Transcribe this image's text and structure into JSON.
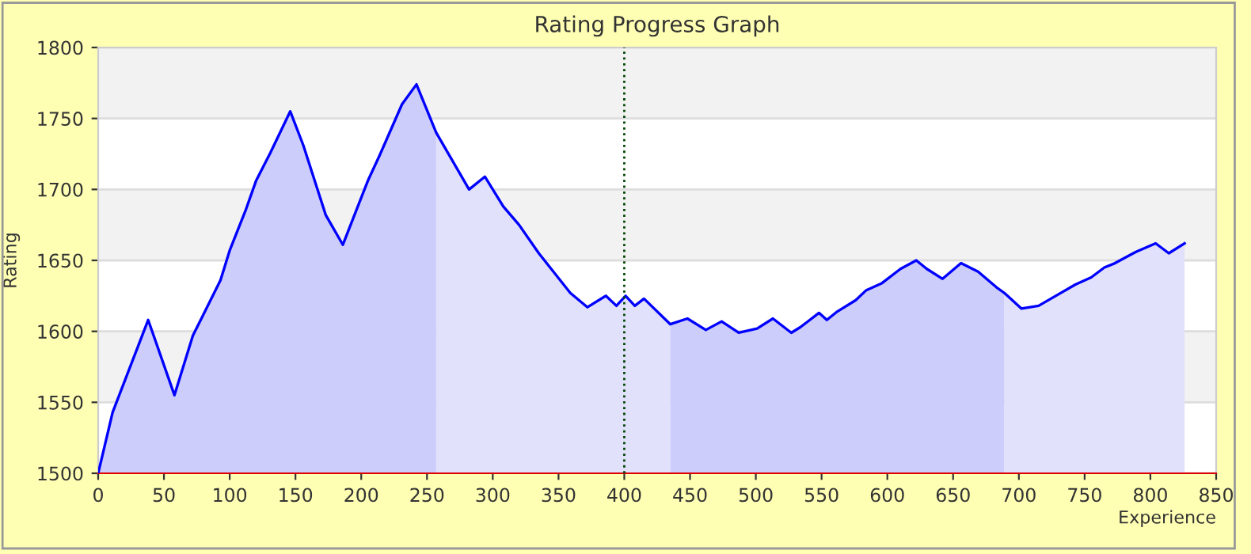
{
  "chart_data": {
    "type": "area",
    "title": "Rating Progress Graph",
    "xlabel": "Experience",
    "ylabel": "Rating",
    "series": [
      {
        "color": "#cdcdfc",
        "x": [
          0,
          11,
          38,
          58,
          72,
          93,
          100,
          112,
          120,
          131,
          146,
          156,
          173,
          186,
          205,
          214,
          231,
          242,
          257
        ],
        "values": [
          1500,
          1543,
          1608,
          1555,
          1597,
          1636,
          1657,
          1685,
          1706,
          1726,
          1755,
          1731,
          1682,
          1661,
          1706,
          1724,
          1760,
          1774,
          1740
        ]
      },
      {
        "color": "#e1e1fb",
        "x": [
          257,
          282,
          294,
          308,
          320,
          335,
          359,
          372,
          386,
          394,
          401,
          408,
          415,
          435
        ],
        "values": [
          1740,
          1700,
          1709,
          1688,
          1675,
          1655,
          1627,
          1617,
          1625,
          1618,
          1625,
          1618,
          1623,
          1605
        ]
      },
      {
        "color": "#cdcdfc",
        "x": [
          435,
          448,
          462,
          474,
          487,
          501,
          513,
          527,
          534,
          548,
          554,
          562,
          576,
          584,
          596,
          610,
          622,
          630,
          642,
          656,
          669,
          683,
          689
        ],
        "values": [
          1605,
          1609,
          1601,
          1607,
          1599,
          1602,
          1609,
          1599,
          1603,
          1613,
          1608,
          1614,
          1622,
          1629,
          1634,
          1644,
          1650,
          1644,
          1637,
          1648,
          1642,
          1631,
          1627
        ]
      },
      {
        "color": "#e1e1fb",
        "x": [
          689,
          702,
          715,
          728,
          743,
          755,
          765,
          773,
          789,
          804,
          814,
          826
        ],
        "values": [
          1627,
          1616,
          1618,
          1625,
          1633,
          1638,
          1645,
          1648,
          1656,
          1662,
          1655,
          1662
        ]
      },
      {
        "type": "line",
        "color": "#0000ff",
        "x": [
          0,
          11,
          38,
          58,
          72,
          93,
          100,
          112,
          120,
          131,
          146,
          156,
          173,
          186,
          205,
          214,
          231,
          242,
          257,
          282,
          294,
          308,
          320,
          335,
          359,
          372,
          386,
          394,
          401,
          408,
          415,
          435,
          448,
          462,
          474,
          487,
          501,
          513,
          527,
          534,
          548,
          554,
          562,
          576,
          584,
          596,
          610,
          622,
          630,
          642,
          656,
          669,
          683,
          689,
          702,
          715,
          728,
          743,
          755,
          765,
          773,
          789,
          804,
          814,
          826
        ],
        "values": [
          1500,
          1543,
          1608,
          1555,
          1597,
          1636,
          1657,
          1685,
          1706,
          1726,
          1755,
          1731,
          1682,
          1661,
          1706,
          1724,
          1760,
          1774,
          1740,
          1700,
          1709,
          1688,
          1675,
          1655,
          1627,
          1617,
          1625,
          1618,
          1625,
          1618,
          1623,
          1605,
          1609,
          1601,
          1607,
          1599,
          1602,
          1609,
          1599,
          1603,
          1613,
          1608,
          1614,
          1622,
          1629,
          1634,
          1644,
          1650,
          1644,
          1637,
          1648,
          1642,
          1631,
          1627,
          1616,
          1618,
          1625,
          1633,
          1638,
          1645,
          1648,
          1656,
          1662,
          1655,
          1662
        ]
      }
    ],
    "xlim": [
      0,
      850
    ],
    "xticks": [
      0,
      50,
      100,
      150,
      200,
      250,
      300,
      350,
      400,
      450,
      500,
      550,
      600,
      650,
      700,
      750,
      800,
      850
    ],
    "ylim": [
      1500,
      1800
    ],
    "yticks": [
      1500,
      1550,
      1600,
      1650,
      1700,
      1750,
      1800
    ],
    "ref_lines": [
      {
        "axis": "x",
        "value": 400,
        "color": "#004400",
        "line_style": "dotted"
      }
    ],
    "grid": "y",
    "legend": false,
    "marker": "none",
    "line_style": "solid"
  }
}
